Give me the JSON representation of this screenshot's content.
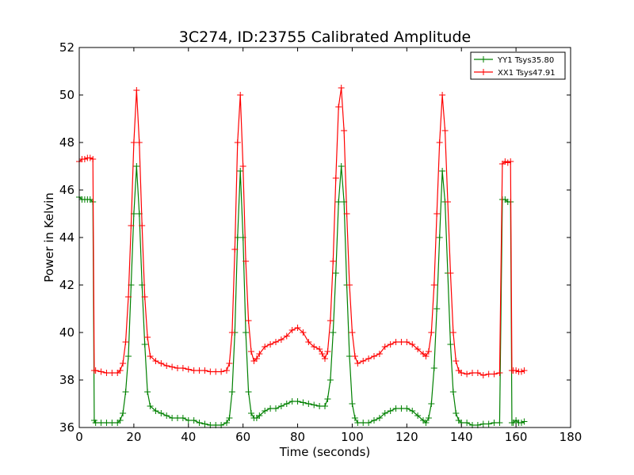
{
  "chart_data": {
    "type": "line",
    "title": "3C274, ID:23755 Calibrated Amplitude",
    "xlabel": "Time (seconds)",
    "ylabel": "Power in Kelvin",
    "xlim": [
      0,
      180
    ],
    "ylim": [
      36,
      52
    ],
    "xticks": [
      0,
      20,
      40,
      60,
      80,
      100,
      120,
      140,
      160,
      180
    ],
    "yticks": [
      36,
      38,
      40,
      42,
      44,
      46,
      48,
      50,
      52
    ],
    "grid": false,
    "legend": "top-right",
    "marker": "+",
    "series": [
      {
        "name": "YY1 Tsys35.80",
        "color": "#008000",
        "points": [
          [
            0,
            45.7
          ],
          [
            1,
            45.6
          ],
          [
            2,
            45.6
          ],
          [
            3,
            45.6
          ],
          [
            4,
            45.6
          ],
          [
            5,
            45.5
          ],
          [
            5.5,
            36.3
          ],
          [
            6,
            36.2
          ],
          [
            8,
            36.2
          ],
          [
            10,
            36.2
          ],
          [
            12,
            36.2
          ],
          [
            14,
            36.2
          ],
          [
            15,
            36.3
          ],
          [
            16,
            36.6
          ],
          [
            17,
            37.5
          ],
          [
            18,
            39.0
          ],
          [
            19,
            42.0
          ],
          [
            20,
            45.0
          ],
          [
            21,
            47.0
          ],
          [
            22,
            45.0
          ],
          [
            23,
            42.0
          ],
          [
            24,
            39.5
          ],
          [
            25,
            37.5
          ],
          [
            26,
            36.9
          ],
          [
            28,
            36.7
          ],
          [
            30,
            36.6
          ],
          [
            32,
            36.5
          ],
          [
            34,
            36.4
          ],
          [
            36,
            36.4
          ],
          [
            38,
            36.4
          ],
          [
            40,
            36.3
          ],
          [
            42,
            36.3
          ],
          [
            44,
            36.2
          ],
          [
            46,
            36.15
          ],
          [
            48,
            36.1
          ],
          [
            50,
            36.1
          ],
          [
            52,
            36.1
          ],
          [
            54,
            36.2
          ],
          [
            55,
            36.4
          ],
          [
            56,
            37.5
          ],
          [
            57,
            40.0
          ],
          [
            58,
            44.0
          ],
          [
            59,
            46.8
          ],
          [
            60,
            44.0
          ],
          [
            61,
            40.0
          ],
          [
            62,
            37.5
          ],
          [
            63,
            36.6
          ],
          [
            64,
            36.4
          ],
          [
            65,
            36.4
          ],
          [
            66,
            36.5
          ],
          [
            68,
            36.7
          ],
          [
            70,
            36.8
          ],
          [
            72,
            36.8
          ],
          [
            74,
            36.9
          ],
          [
            76,
            37.0
          ],
          [
            78,
            37.1
          ],
          [
            80,
            37.1
          ],
          [
            82,
            37.05
          ],
          [
            84,
            37.0
          ],
          [
            86,
            36.95
          ],
          [
            88,
            36.9
          ],
          [
            90,
            36.9
          ],
          [
            91,
            37.2
          ],
          [
            92,
            38.0
          ],
          [
            93,
            40.0
          ],
          [
            94,
            42.5
          ],
          [
            95,
            45.5
          ],
          [
            96,
            47.0
          ],
          [
            97,
            45.5
          ],
          [
            98,
            42.0
          ],
          [
            99,
            39.0
          ],
          [
            100,
            37.0
          ],
          [
            101,
            36.4
          ],
          [
            102,
            36.2
          ],
          [
            104,
            36.2
          ],
          [
            106,
            36.2
          ],
          [
            108,
            36.3
          ],
          [
            110,
            36.4
          ],
          [
            112,
            36.6
          ],
          [
            114,
            36.7
          ],
          [
            116,
            36.8
          ],
          [
            118,
            36.8
          ],
          [
            120,
            36.8
          ],
          [
            122,
            36.7
          ],
          [
            124,
            36.5
          ],
          [
            126,
            36.3
          ],
          [
            127,
            36.2
          ],
          [
            128,
            36.4
          ],
          [
            129,
            37.0
          ],
          [
            130,
            38.5
          ],
          [
            131,
            41.0
          ],
          [
            132,
            44.0
          ],
          [
            133,
            46.8
          ],
          [
            134,
            45.5
          ],
          [
            135,
            42.5
          ],
          [
            136,
            39.5
          ],
          [
            137,
            37.5
          ],
          [
            138,
            36.6
          ],
          [
            139,
            36.3
          ],
          [
            140,
            36.2
          ],
          [
            142,
            36.2
          ],
          [
            144,
            36.1
          ],
          [
            146,
            36.1
          ],
          [
            148,
            36.15
          ],
          [
            150,
            36.15
          ],
          [
            152,
            36.2
          ],
          [
            154,
            36.2
          ],
          [
            155,
            45.6
          ],
          [
            156,
            45.6
          ],
          [
            157,
            45.5
          ],
          [
            158,
            45.5
          ],
          [
            158.5,
            36.2
          ],
          [
            159,
            36.2
          ],
          [
            160,
            36.3
          ],
          [
            161,
            36.2
          ],
          [
            162,
            36.2
          ],
          [
            163,
            36.25
          ]
        ]
      },
      {
        "name": "XX1 Tsys47.91",
        "color": "#ff0000",
        "points": [
          [
            0,
            47.2
          ],
          [
            1,
            47.3
          ],
          [
            2,
            47.3
          ],
          [
            3,
            47.35
          ],
          [
            4,
            47.35
          ],
          [
            5,
            47.3
          ],
          [
            5.5,
            38.4
          ],
          [
            6,
            38.4
          ],
          [
            8,
            38.35
          ],
          [
            10,
            38.3
          ],
          [
            12,
            38.3
          ],
          [
            14,
            38.3
          ],
          [
            15,
            38.4
          ],
          [
            16,
            38.7
          ],
          [
            17,
            39.6
          ],
          [
            18,
            41.5
          ],
          [
            19,
            44.5
          ],
          [
            20,
            48.0
          ],
          [
            21,
            50.2
          ],
          [
            22,
            48.0
          ],
          [
            23,
            44.5
          ],
          [
            24,
            41.5
          ],
          [
            25,
            39.8
          ],
          [
            26,
            39.0
          ],
          [
            28,
            38.8
          ],
          [
            30,
            38.7
          ],
          [
            32,
            38.6
          ],
          [
            34,
            38.55
          ],
          [
            36,
            38.5
          ],
          [
            38,
            38.5
          ],
          [
            40,
            38.45
          ],
          [
            42,
            38.4
          ],
          [
            44,
            38.4
          ],
          [
            46,
            38.4
          ],
          [
            48,
            38.35
          ],
          [
            50,
            38.35
          ],
          [
            52,
            38.35
          ],
          [
            54,
            38.4
          ],
          [
            55,
            38.7
          ],
          [
            56,
            40.0
          ],
          [
            57,
            43.5
          ],
          [
            58,
            48.0
          ],
          [
            59,
            50.0
          ],
          [
            60,
            47.0
          ],
          [
            61,
            43.0
          ],
          [
            62,
            40.5
          ],
          [
            63,
            39.2
          ],
          [
            64,
            38.8
          ],
          [
            65,
            38.9
          ],
          [
            66,
            39.1
          ],
          [
            68,
            39.4
          ],
          [
            70,
            39.5
          ],
          [
            72,
            39.6
          ],
          [
            74,
            39.7
          ],
          [
            76,
            39.85
          ],
          [
            78,
            40.1
          ],
          [
            80,
            40.2
          ],
          [
            82,
            40.0
          ],
          [
            84,
            39.6
          ],
          [
            86,
            39.4
          ],
          [
            88,
            39.3
          ],
          [
            89,
            39.1
          ],
          [
            90,
            38.9
          ],
          [
            91,
            39.2
          ],
          [
            92,
            40.5
          ],
          [
            93,
            43.0
          ],
          [
            94,
            46.5
          ],
          [
            95,
            49.5
          ],
          [
            96,
            50.3
          ],
          [
            97,
            48.5
          ],
          [
            98,
            45.0
          ],
          [
            99,
            42.0
          ],
          [
            100,
            40.0
          ],
          [
            101,
            39.0
          ],
          [
            102,
            38.7
          ],
          [
            104,
            38.8
          ],
          [
            106,
            38.9
          ],
          [
            108,
            39.0
          ],
          [
            110,
            39.1
          ],
          [
            112,
            39.4
          ],
          [
            114,
            39.5
          ],
          [
            116,
            39.6
          ],
          [
            118,
            39.6
          ],
          [
            120,
            39.6
          ],
          [
            122,
            39.5
          ],
          [
            124,
            39.3
          ],
          [
            126,
            39.1
          ],
          [
            127,
            39.0
          ],
          [
            128,
            39.2
          ],
          [
            129,
            40.0
          ],
          [
            130,
            42.0
          ],
          [
            131,
            45.0
          ],
          [
            132,
            48.0
          ],
          [
            133,
            50.0
          ],
          [
            134,
            48.5
          ],
          [
            135,
            45.5
          ],
          [
            136,
            42.5
          ],
          [
            137,
            40.0
          ],
          [
            138,
            38.8
          ],
          [
            139,
            38.4
          ],
          [
            140,
            38.3
          ],
          [
            142,
            38.25
          ],
          [
            144,
            38.3
          ],
          [
            146,
            38.3
          ],
          [
            148,
            38.2
          ],
          [
            150,
            38.25
          ],
          [
            152,
            38.25
          ],
          [
            154,
            38.3
          ],
          [
            155,
            47.1
          ],
          [
            156,
            47.2
          ],
          [
            157,
            47.15
          ],
          [
            158,
            47.2
          ],
          [
            158.5,
            38.4
          ],
          [
            159,
            38.4
          ],
          [
            160,
            38.4
          ],
          [
            161,
            38.35
          ],
          [
            162,
            38.35
          ],
          [
            163,
            38.4
          ]
        ]
      }
    ]
  }
}
